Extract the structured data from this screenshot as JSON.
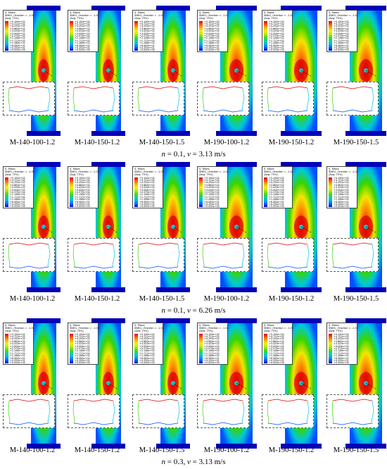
{
  "legend": {
    "header": [
      "S, Mises",
      "SNEG, (fraction = -1.0)",
      "(Avg: 75%)"
    ],
    "values": [
      "+5.150e+02",
      "+4.721e+02",
      "+4.292e+02",
      "+3.863e+02",
      "+3.433e+02",
      "+3.004e+02",
      "+2.575e+02",
      "+2.146e+02",
      "+1.717e+02",
      "+1.288e+02",
      "+8.583e+01",
      "+4.292e+01",
      "+0.000e+00"
    ]
  },
  "labels": [
    "M-140-100-1.2",
    "M-140-150-1.2",
    "M-140-150-1.5",
    "M-190-100-1.2",
    "M-190-150-1.2",
    "M-190-150-1.5"
  ],
  "captions": [
    {
      "n": "n",
      "n_val": " = 0.1, ",
      "v": "v",
      "v_val": " = 3.13 m/s"
    },
    {
      "n": "n",
      "n_val": " = 0.1, ",
      "v": "v",
      "v_val": " = 6.26 m/s"
    },
    {
      "n": "n",
      "n_val": " = 0.3, ",
      "v": "v",
      "v_val": " = 3.13 m/s"
    }
  ],
  "colors": {
    "red": "#e00000",
    "orange": "#ff7a00",
    "yellow": "#f2e600",
    "green": "#39d400",
    "cyan": "#00c8d8",
    "blue": "#0050ff",
    "navy": "#0000b8"
  }
}
